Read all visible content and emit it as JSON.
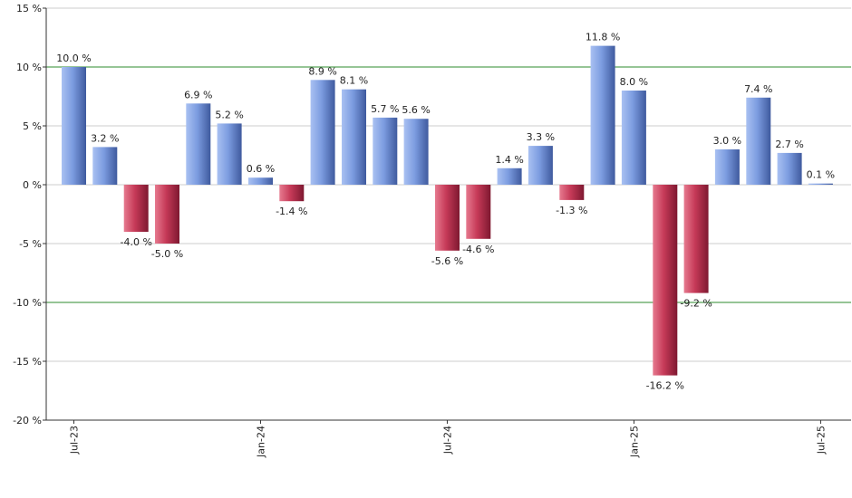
{
  "chart_data": {
    "type": "bar",
    "title": "",
    "xlabel": "",
    "ylabel": "",
    "ylim": [
      -20,
      15
    ],
    "y_ticks": [
      "15 %",
      "10 %",
      "5 %",
      "0 %",
      "-5 %",
      "-10 %",
      "-15 %",
      "-20 %"
    ],
    "x_tick_labels": [
      {
        "label": "Jul-23",
        "index": 0
      },
      {
        "label": "Jan-24",
        "index": 6
      },
      {
        "label": "Jul-24",
        "index": 12
      },
      {
        "label": "Jan-25",
        "index": 18
      },
      {
        "label": "Jul-25",
        "index": 24
      }
    ],
    "reference_lines": [
      10,
      -10
    ],
    "grid": true,
    "values": [
      10.0,
      3.2,
      -4.0,
      -5.0,
      6.9,
      5.2,
      0.6,
      -1.4,
      8.9,
      8.1,
      5.7,
      5.6,
      -5.6,
      -4.6,
      1.4,
      3.3,
      -1.3,
      11.8,
      8.0,
      -16.2,
      -9.2,
      3.0,
      7.4,
      2.7,
      0.1
    ],
    "data_labels": [
      "10.0 %",
      "3.2 %",
      "-4.0 %",
      "-5.0 %",
      "6.9 %",
      "5.2 %",
      "0.6 %",
      "-1.4 %",
      "8.9 %",
      "8.1 %",
      "5.7 %",
      "5.6 %",
      "-5.6 %",
      "-4.6 %",
      "1.4 %",
      "3.3 %",
      "-1.3 %",
      "11.8 %",
      "8.0 %",
      "-16.2 %",
      "-9.2 %",
      "3.0 %",
      "7.4 %",
      "2.7 %",
      "0.1 %"
    ],
    "colors": {
      "positive": "#6f8fd4",
      "negative": "#c03a55",
      "reference_line": "#2e8b2e",
      "grid": "#cccccc",
      "axis": "#333333"
    }
  }
}
